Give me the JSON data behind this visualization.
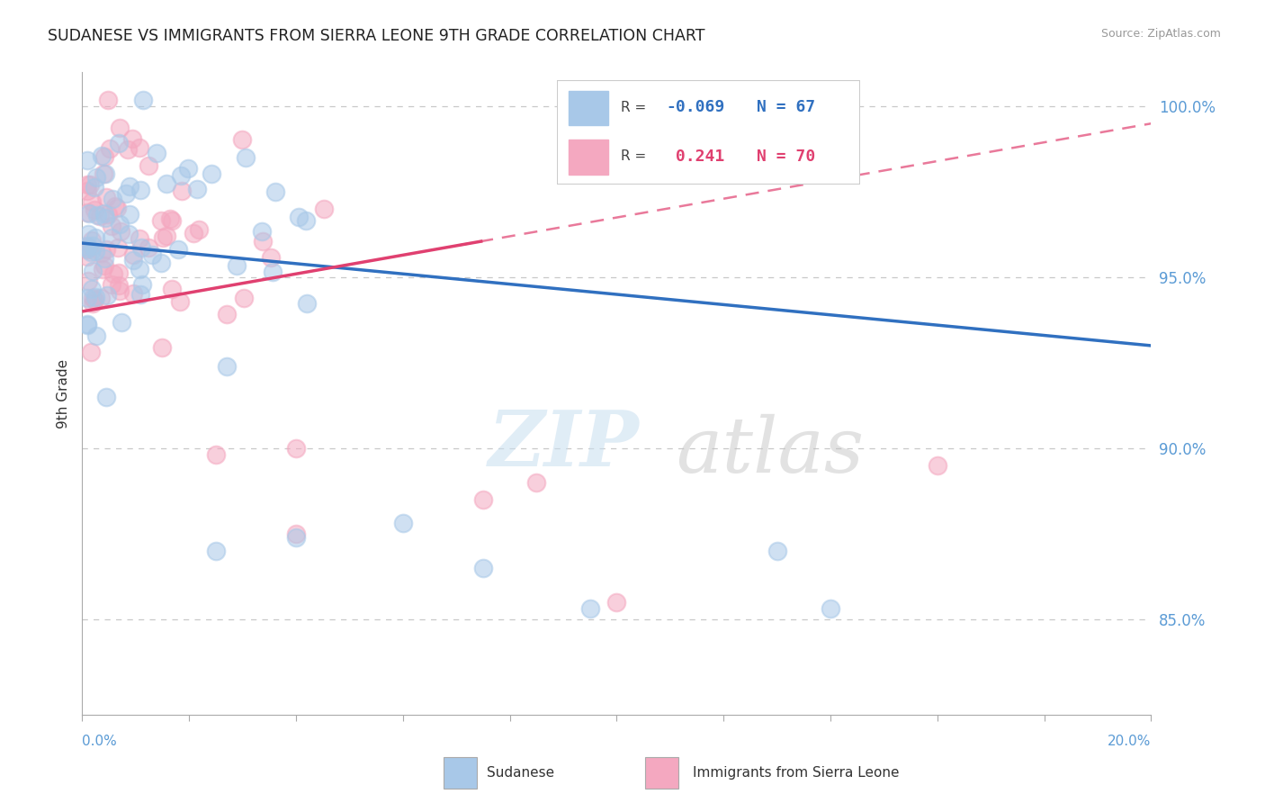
{
  "title": "SUDANESE VS IMMIGRANTS FROM SIERRA LEONE 9TH GRADE CORRELATION CHART",
  "source": "Source: ZipAtlas.com",
  "ylabel": "9th Grade",
  "xmin": 0.0,
  "xmax": 0.2,
  "ymin": 0.822,
  "ymax": 1.01,
  "yticks": [
    0.85,
    0.9,
    0.95,
    1.0
  ],
  "ytick_labels": [
    "85.0%",
    "90.0%",
    "95.0%",
    "100.0%"
  ],
  "color_blue": "#a8c8e8",
  "color_pink": "#f4a8c0",
  "color_blue_line": "#3070c0",
  "color_pink_line": "#e04070",
  "color_axis_labels": "#5b9bd5",
  "color_grid": "#c8c8c8",
  "r_blue": -0.069,
  "n_blue": 67,
  "r_pink": 0.241,
  "n_pink": 70,
  "blue_trend_x0": 0.0,
  "blue_trend_y0": 0.96,
  "blue_trend_x1": 0.2,
  "blue_trend_y1": 0.93,
  "pink_trend_x0": 0.0,
  "pink_trend_y0": 0.94,
  "pink_trend_x1": 0.2,
  "pink_trend_y1": 0.995
}
